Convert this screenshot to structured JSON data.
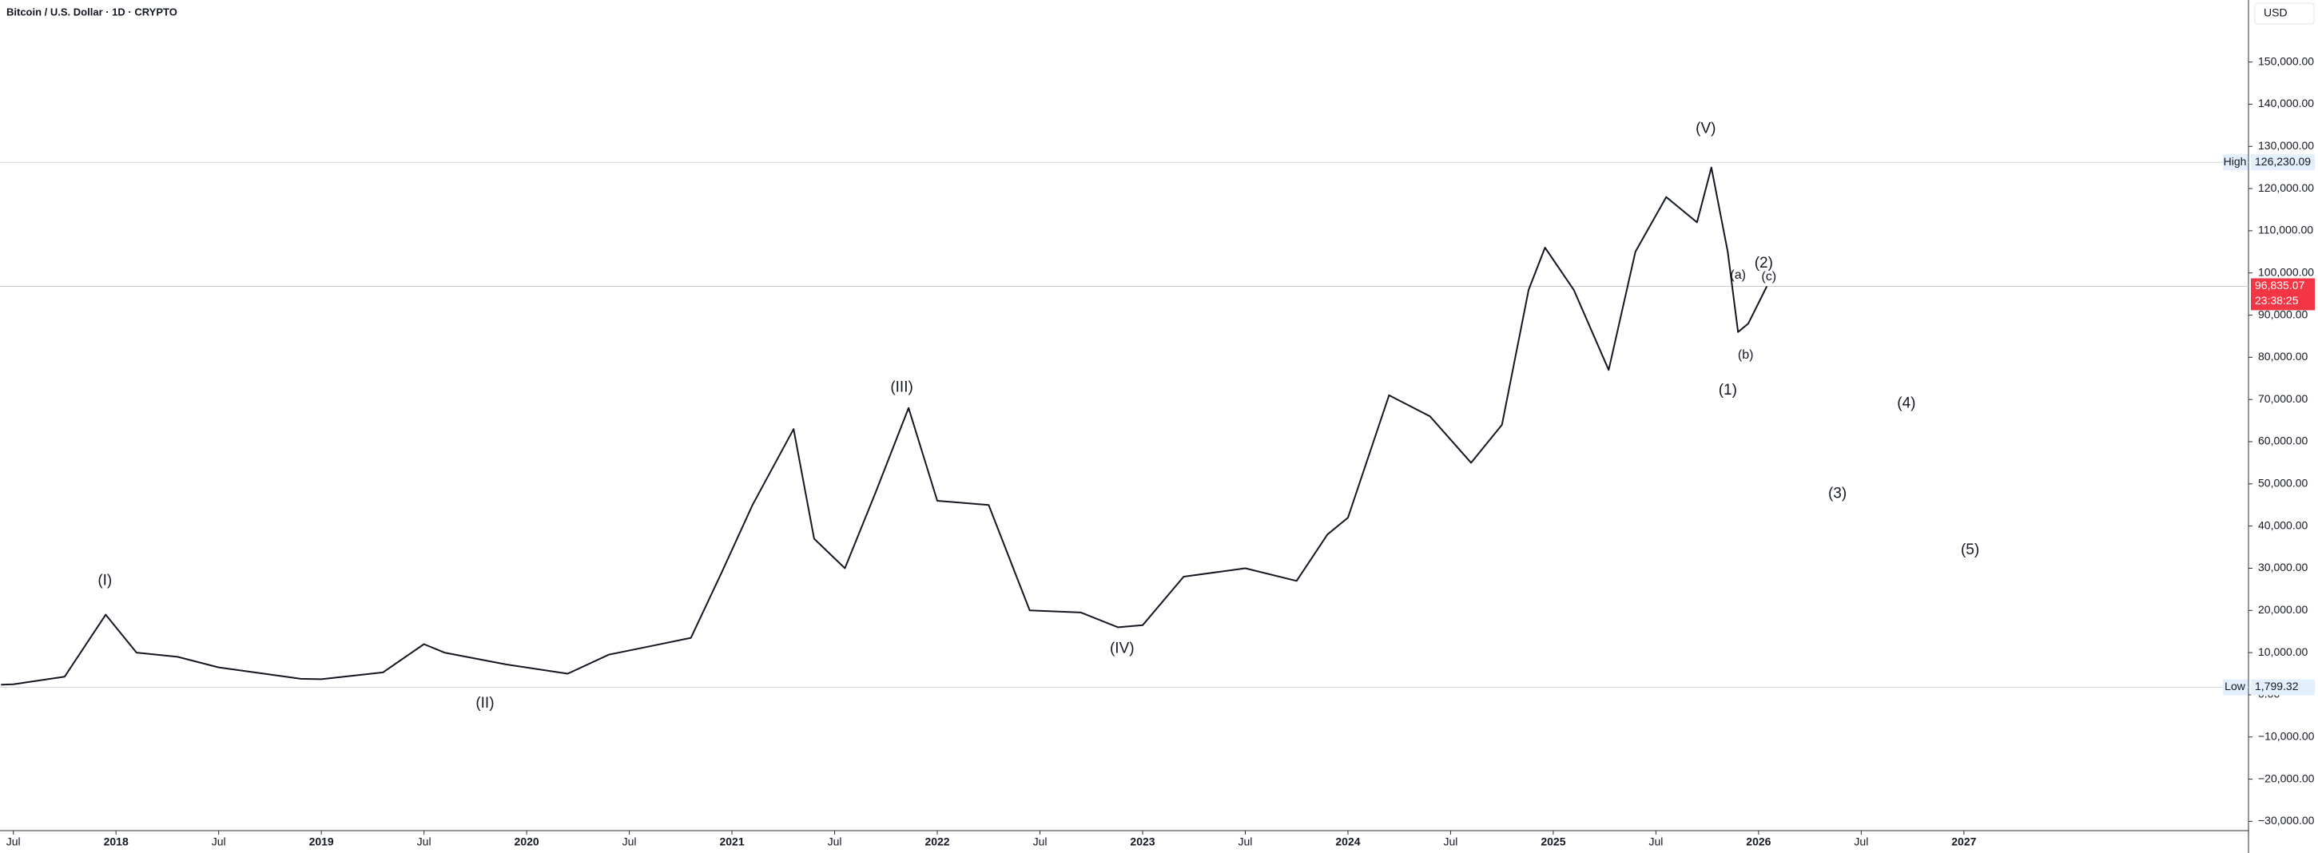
{
  "chart_data": {
    "type": "line",
    "title": "Bitcoin / U.S. Dollar · 1D · CRYPTO",
    "currency": "USD",
    "color": "#131722",
    "series": [
      {
        "name": "BTCUSD",
        "x": [
          2017.44,
          2017.5,
          2017.75,
          2017.95,
          2018.1,
          2018.3,
          2018.5,
          2018.9,
          2019.0,
          2019.3,
          2019.5,
          2019.6,
          2019.9,
          2020.2,
          2020.4,
          2020.6,
          2020.8,
          2020.95,
          2021.1,
          2021.3,
          2021.4,
          2021.55,
          2021.7,
          2021.86,
          2022.0,
          2022.25,
          2022.45,
          2022.7,
          2022.88,
          2023.0,
          2023.2,
          2023.5,
          2023.75,
          2023.9,
          2024.0,
          2024.2,
          2024.4,
          2024.6,
          2024.75,
          2024.88,
          2024.96,
          2025.1,
          2025.27,
          2025.4,
          2025.55,
          2025.7,
          2025.77,
          2025.85,
          2025.9,
          2025.95,
          2026.04
        ],
        "values": [
          2400,
          2500,
          4300,
          19000,
          10000,
          9000,
          6500,
          3800,
          3700,
          5300,
          12000,
          10000,
          7200,
          5000,
          9500,
          11500,
          13500,
          29000,
          45000,
          63000,
          37000,
          30000,
          48000,
          68000,
          46000,
          45000,
          20000,
          19500,
          16000,
          16500,
          28000,
          30000,
          27000,
          38000,
          42000,
          71000,
          66000,
          55000,
          64000,
          96000,
          106000,
          96000,
          77000,
          105000,
          118000,
          112000,
          125000,
          105000,
          86000,
          88000,
          96835.07
        ]
      }
    ],
    "xlim": [
      2017.435,
      2028.386
    ],
    "ylim": [
      -32200,
      164700
    ],
    "xticks": [
      {
        "value": 2017.5,
        "label": "Jul"
      },
      2018,
      {
        "value": 2018.5,
        "label": "Jul"
      },
      2019,
      {
        "value": 2019.5,
        "label": "Jul"
      },
      2020,
      {
        "value": 2020.5,
        "label": "Jul"
      },
      2021,
      {
        "value": 2021.5,
        "label": "Jul"
      },
      2022,
      {
        "value": 2022.5,
        "label": "Jul"
      },
      2023,
      {
        "value": 2023.5,
        "label": "Jul"
      },
      2024,
      {
        "value": 2024.5,
        "label": "Jul"
      },
      2025,
      {
        "value": 2025.5,
        "label": "Jul"
      },
      2026,
      {
        "value": 2026.5,
        "label": "Jul"
      },
      2027
    ],
    "yticks": [
      {
        "value": -30000,
        "label": "−30,000.00"
      },
      {
        "value": -20000,
        "label": "−20,000.00"
      },
      {
        "value": -10000,
        "label": "−10,000.00"
      },
      {
        "value": 0,
        "label": "0.00"
      },
      {
        "value": 10000,
        "label": "10,000.00"
      },
      {
        "value": 20000,
        "label": "20,000.00"
      },
      {
        "value": 30000,
        "label": "30,000.00"
      },
      {
        "value": 40000,
        "label": "40,000.00"
      },
      {
        "value": 50000,
        "label": "50,000.00"
      },
      {
        "value": 60000,
        "label": "60,000.00"
      },
      {
        "value": 70000,
        "label": "70,000.00"
      },
      {
        "value": 80000,
        "label": "80,000.00"
      },
      {
        "value": 90000,
        "label": "90,000.00"
      },
      {
        "value": 100000,
        "label": "100,000.00"
      },
      {
        "value": 110000,
        "label": "110,000.00"
      },
      {
        "value": 120000,
        "label": "120,000.00"
      },
      {
        "value": 130000,
        "label": "130,000.00"
      },
      {
        "value": 140000,
        "label": "140,000.00"
      },
      {
        "value": 150000,
        "label": "150,000.00"
      }
    ],
    "high": {
      "label": "High",
      "value": 126230.09,
      "value_label": "126,230.09"
    },
    "low": {
      "label": "Low",
      "value": 1799.32,
      "value_label": "1,799.32"
    },
    "last": {
      "value": 96835.07,
      "value_label": "96,835.07",
      "countdown": "23:38:25"
    },
    "annotations": [
      "(I)",
      "(II)",
      "(III)",
      "(IV)",
      "(V)",
      "(a)",
      "(b)",
      "(c)",
      "(2)",
      "(1)",
      "(3)",
      "(4)",
      "(5)"
    ]
  }
}
